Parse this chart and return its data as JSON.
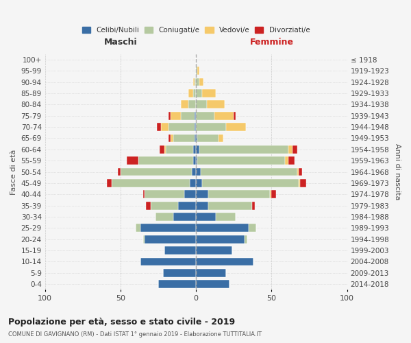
{
  "age_groups": [
    "0-4",
    "5-9",
    "10-14",
    "15-19",
    "20-24",
    "25-29",
    "30-34",
    "35-39",
    "40-44",
    "45-49",
    "50-54",
    "55-59",
    "60-64",
    "65-69",
    "70-74",
    "75-79",
    "80-84",
    "85-89",
    "90-94",
    "95-99",
    "100+"
  ],
  "birth_years": [
    "2014-2018",
    "2009-2013",
    "2004-2008",
    "1999-2003",
    "1994-1998",
    "1989-1993",
    "1984-1988",
    "1979-1983",
    "1974-1978",
    "1969-1973",
    "1964-1968",
    "1959-1963",
    "1954-1958",
    "1949-1953",
    "1944-1948",
    "1939-1943",
    "1934-1938",
    "1929-1933",
    "1924-1928",
    "1919-1923",
    "≤ 1918"
  ],
  "colors": {
    "celibi": "#3a6ea5",
    "coniugati": "#b5c9a0",
    "vedovi": "#f5c96a",
    "divorziati": "#cc2222"
  },
  "males": {
    "celibi": [
      25,
      22,
      37,
      21,
      34,
      37,
      15,
      12,
      8,
      4,
      3,
      2,
      2,
      1,
      1,
      1,
      0,
      0,
      0,
      0,
      0
    ],
    "coniugati": [
      0,
      0,
      0,
      0,
      1,
      3,
      12,
      18,
      26,
      52,
      47,
      36,
      18,
      14,
      17,
      9,
      5,
      2,
      1,
      0,
      0
    ],
    "vedovi": [
      0,
      0,
      0,
      0,
      0,
      0,
      0,
      0,
      0,
      0,
      0,
      0,
      1,
      2,
      5,
      7,
      5,
      3,
      1,
      0,
      0
    ],
    "divorziati": [
      0,
      0,
      0,
      0,
      0,
      0,
      0,
      3,
      1,
      3,
      2,
      8,
      3,
      1,
      3,
      1,
      0,
      0,
      0,
      0,
      0
    ]
  },
  "females": {
    "celibi": [
      22,
      20,
      38,
      24,
      32,
      35,
      13,
      8,
      8,
      4,
      3,
      1,
      2,
      1,
      0,
      0,
      0,
      0,
      0,
      0,
      0
    ],
    "coniugati": [
      0,
      0,
      0,
      0,
      2,
      5,
      13,
      29,
      41,
      64,
      64,
      58,
      59,
      14,
      20,
      12,
      7,
      4,
      2,
      1,
      0
    ],
    "vedovi": [
      0,
      0,
      0,
      0,
      0,
      0,
      0,
      0,
      1,
      1,
      1,
      2,
      3,
      3,
      13,
      13,
      12,
      9,
      3,
      1,
      0
    ],
    "divorziati": [
      0,
      0,
      0,
      0,
      0,
      0,
      0,
      2,
      3,
      4,
      2,
      4,
      3,
      0,
      0,
      1,
      0,
      0,
      0,
      0,
      0
    ]
  },
  "xlim": 100,
  "title": "Popolazione per età, sesso e stato civile - 2019",
  "subtitle": "COMUNE DI GAVIGNANO (RM) - Dati ISTAT 1° gennaio 2019 - Elaborazione TUTTITALIA.IT",
  "ylabel_left": "Fasce di età",
  "ylabel_right": "Anni di nascita",
  "xlabel_left": "Maschi",
  "xlabel_right": "Femmine",
  "legend_labels": [
    "Celibi/Nubili",
    "Coniugati/e",
    "Vedovi/e",
    "Divorziati/e"
  ],
  "background_color": "#f5f5f5"
}
